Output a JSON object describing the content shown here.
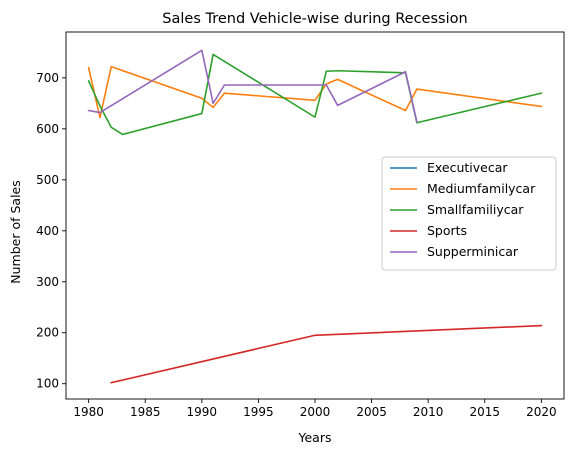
{
  "chart_data": {
    "type": "line",
    "title": "Sales Trend Vehicle-wise during Recession",
    "xlabel": "Years",
    "ylabel": "Number of Sales",
    "xlim": [
      1978,
      2022
    ],
    "ylim": [
      70,
      790
    ],
    "xticks": [
      1980,
      1985,
      1990,
      1995,
      2000,
      2005,
      2010,
      2015,
      2020
    ],
    "yticks": [
      100,
      200,
      300,
      400,
      500,
      600,
      700
    ],
    "grid": false,
    "legend_position": "center-right",
    "series": [
      {
        "name": "Executivecar",
        "color": "#1f77b4",
        "points": []
      },
      {
        "name": "Mediumfamilycar",
        "color": "#ff7f0e",
        "points": [
          [
            1980,
            720
          ],
          [
            1981,
            622
          ],
          [
            1982,
            722
          ],
          [
            1990,
            660
          ],
          [
            1991,
            642
          ],
          [
            1992,
            670
          ],
          [
            2000,
            656
          ],
          [
            2001,
            688
          ],
          [
            2002,
            697
          ],
          [
            2008,
            636
          ],
          [
            2009,
            678
          ],
          [
            2020,
            644
          ]
        ]
      },
      {
        "name": "Smallfamiliycar",
        "color": "#2ca02c",
        "points": [
          [
            1980,
            694
          ],
          [
            1981,
            645
          ],
          [
            1982,
            603
          ],
          [
            1983,
            589
          ],
          [
            1990,
            630
          ],
          [
            1991,
            746
          ],
          [
            2000,
            623
          ],
          [
            2001,
            713
          ],
          [
            2002,
            714
          ],
          [
            2008,
            710
          ],
          [
            2009,
            612
          ],
          [
            2020,
            670
          ]
        ]
      },
      {
        "name": "Sports",
        "color": "#d62728",
        "points": [
          [
            1982,
            102
          ],
          [
            2000,
            195
          ],
          [
            2020,
            214
          ]
        ]
      },
      {
        "name": "Supperminicar",
        "color": "#9467bd",
        "points": [
          [
            1980,
            636
          ],
          [
            1981,
            632
          ],
          [
            1990,
            754
          ],
          [
            1991,
            650
          ],
          [
            1992,
            686
          ],
          [
            2000,
            686
          ],
          [
            2001,
            686
          ],
          [
            2002,
            646
          ],
          [
            2008,
            712
          ],
          [
            2009,
            614
          ]
        ]
      }
    ]
  }
}
